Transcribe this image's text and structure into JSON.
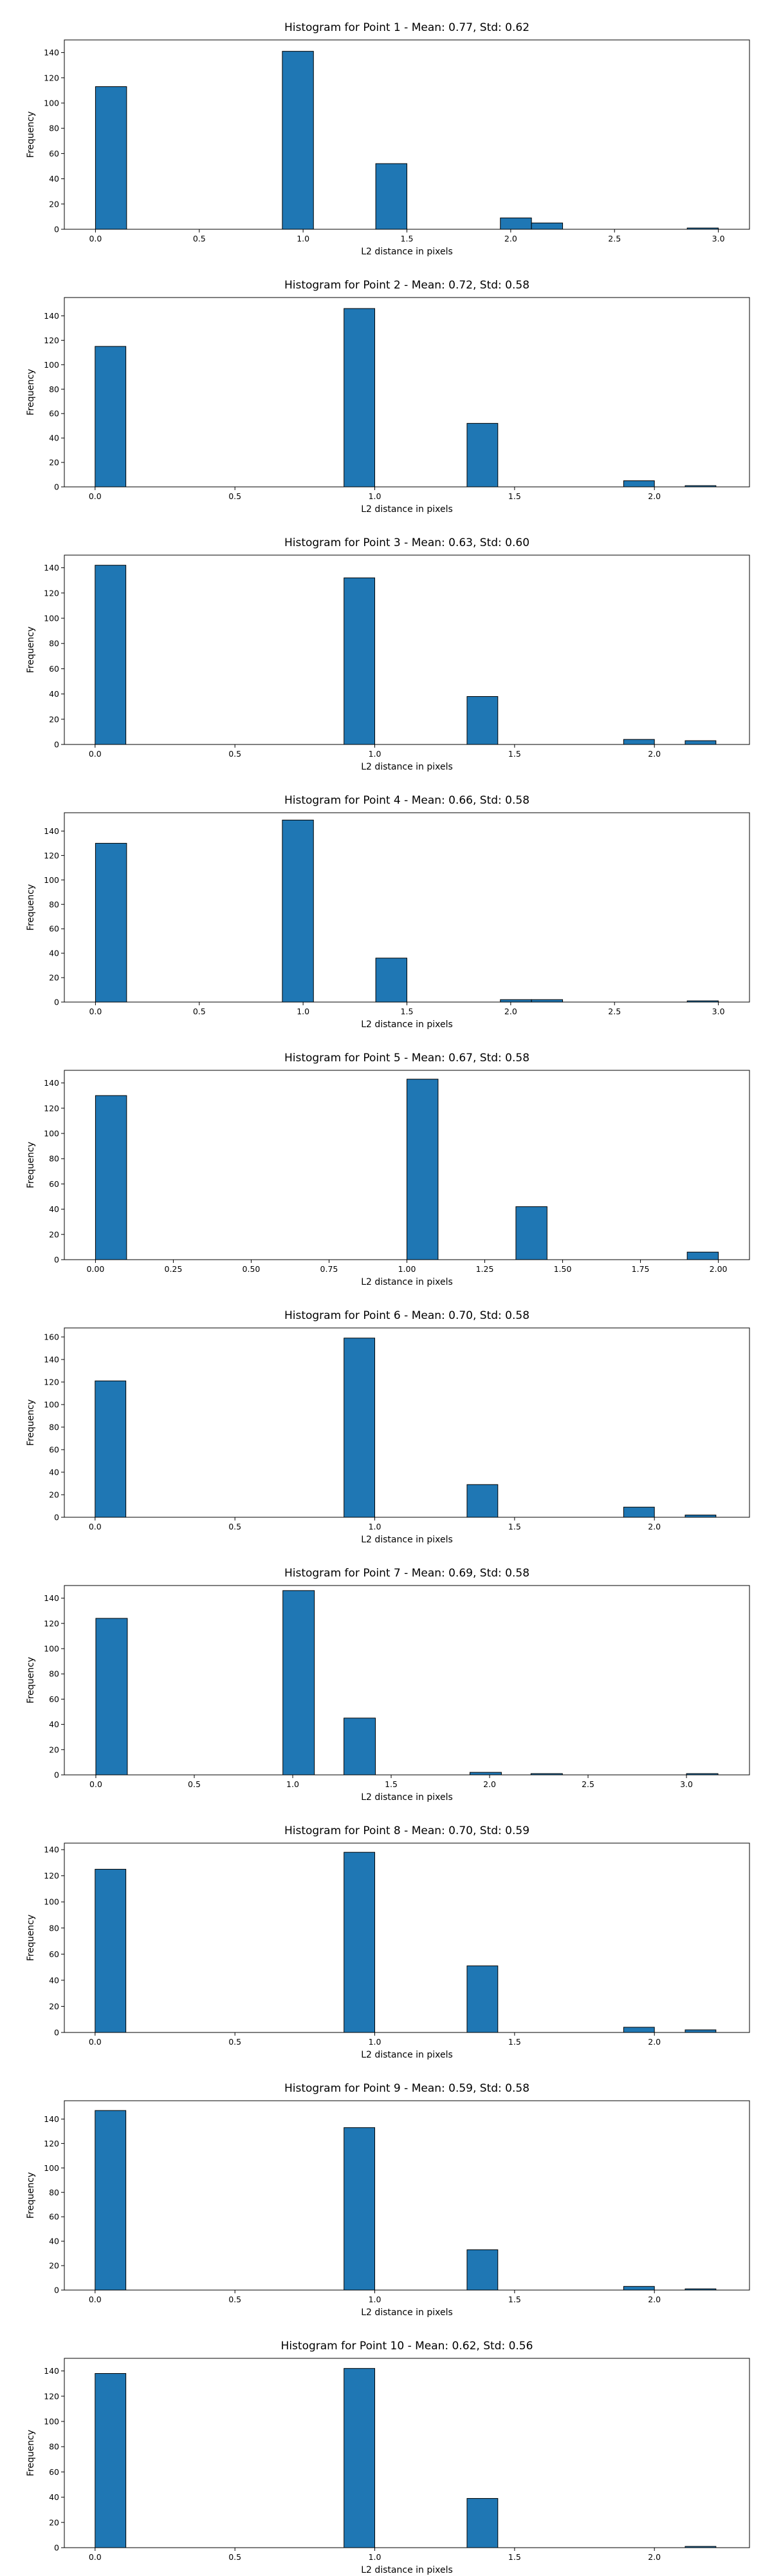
{
  "chart_data": [
    {
      "type": "bar",
      "title": "Histogram for Point 1 - Mean: 0.77, Std: 0.62",
      "xlabel": "L2 distance in pixels",
      "ylabel": "Frequency",
      "xlim": [
        -0.15,
        3.15
      ],
      "ylim": [
        0,
        150
      ],
      "xticks": [
        0.0,
        0.5,
        1.0,
        1.5,
        2.0,
        2.5,
        3.0
      ],
      "xtick_labels": [
        "0.0",
        "0.5",
        "1.0",
        "1.5",
        "2.0",
        "2.5",
        "3.0"
      ],
      "yticks": [
        0,
        20,
        40,
        60,
        80,
        100,
        120,
        140
      ],
      "ytick_labels": [
        "0",
        "20",
        "40",
        "60",
        "80",
        "100",
        "120",
        "140"
      ],
      "bins": [
        {
          "x0": 0.0,
          "x1": 0.15,
          "count": 113
        },
        {
          "x0": 0.9,
          "x1": 1.05,
          "count": 141
        },
        {
          "x0": 1.35,
          "x1": 1.5,
          "count": 52
        },
        {
          "x0": 1.95,
          "x1": 2.1,
          "count": 9
        },
        {
          "x0": 2.1,
          "x1": 2.25,
          "count": 5
        },
        {
          "x0": 2.85,
          "x1": 3.0,
          "count": 1
        }
      ]
    },
    {
      "type": "bar",
      "title": "Histogram for Point 2 - Mean: 0.72, Std: 0.58",
      "xlabel": "L2 distance in pixels",
      "ylabel": "Frequency",
      "xlim": [
        -0.11,
        2.34
      ],
      "ylim": [
        0,
        155
      ],
      "xticks": [
        0.0,
        0.5,
        1.0,
        1.5,
        2.0
      ],
      "xtick_labels": [
        "0.0",
        "0.5",
        "1.0",
        "1.5",
        "2.0"
      ],
      "yticks": [
        0,
        20,
        40,
        60,
        80,
        100,
        120,
        140
      ],
      "ytick_labels": [
        "0",
        "20",
        "40",
        "60",
        "80",
        "100",
        "120",
        "140"
      ],
      "bins": [
        {
          "x0": 0.0,
          "x1": 0.11,
          "count": 115
        },
        {
          "x0": 0.89,
          "x1": 1.0,
          "count": 146
        },
        {
          "x0": 1.33,
          "x1": 1.44,
          "count": 52
        },
        {
          "x0": 1.89,
          "x1": 2.0,
          "count": 5
        },
        {
          "x0": 2.11,
          "x1": 2.22,
          "count": 1
        }
      ]
    },
    {
      "type": "bar",
      "title": "Histogram for Point 3 - Mean: 0.63, Std: 0.60",
      "xlabel": "L2 distance in pixels",
      "ylabel": "Frequency",
      "xlim": [
        -0.11,
        2.34
      ],
      "ylim": [
        0,
        150
      ],
      "xticks": [
        0.0,
        0.5,
        1.0,
        1.5,
        2.0
      ],
      "xtick_labels": [
        "0.0",
        "0.5",
        "1.0",
        "1.5",
        "2.0"
      ],
      "yticks": [
        0,
        20,
        40,
        60,
        80,
        100,
        120,
        140
      ],
      "ytick_labels": [
        "0",
        "20",
        "40",
        "60",
        "80",
        "100",
        "120",
        "140"
      ],
      "bins": [
        {
          "x0": 0.0,
          "x1": 0.11,
          "count": 142
        },
        {
          "x0": 0.89,
          "x1": 1.0,
          "count": 132
        },
        {
          "x0": 1.33,
          "x1": 1.44,
          "count": 38
        },
        {
          "x0": 1.89,
          "x1": 2.0,
          "count": 4
        },
        {
          "x0": 2.11,
          "x1": 2.22,
          "count": 3
        }
      ]
    },
    {
      "type": "bar",
      "title": "Histogram for Point 4 - Mean: 0.66, Std: 0.58",
      "xlabel": "L2 distance in pixels",
      "ylabel": "Frequency",
      "xlim": [
        -0.15,
        3.15
      ],
      "ylim": [
        0,
        155
      ],
      "xticks": [
        0.0,
        0.5,
        1.0,
        1.5,
        2.0,
        2.5,
        3.0
      ],
      "xtick_labels": [
        "0.0",
        "0.5",
        "1.0",
        "1.5",
        "2.0",
        "2.5",
        "3.0"
      ],
      "yticks": [
        0,
        20,
        40,
        60,
        80,
        100,
        120,
        140
      ],
      "ytick_labels": [
        "0",
        "20",
        "40",
        "60",
        "80",
        "100",
        "120",
        "140"
      ],
      "bins": [
        {
          "x0": 0.0,
          "x1": 0.15,
          "count": 130
        },
        {
          "x0": 0.9,
          "x1": 1.05,
          "count": 149
        },
        {
          "x0": 1.35,
          "x1": 1.5,
          "count": 36
        },
        {
          "x0": 1.95,
          "x1": 2.1,
          "count": 2
        },
        {
          "x0": 2.1,
          "x1": 2.25,
          "count": 2
        },
        {
          "x0": 2.85,
          "x1": 3.0,
          "count": 1
        }
      ]
    },
    {
      "type": "bar",
      "title": "Histogram for Point 5 - Mean: 0.67, Std: 0.58",
      "xlabel": "L2 distance in pixels",
      "ylabel": "Frequency",
      "xlim": [
        -0.1,
        2.1
      ],
      "ylim": [
        0,
        150
      ],
      "xticks": [
        0.0,
        0.25,
        0.5,
        0.75,
        1.0,
        1.25,
        1.5,
        1.75,
        2.0
      ],
      "xtick_labels": [
        "0.00",
        "0.25",
        "0.50",
        "0.75",
        "1.00",
        "1.25",
        "1.50",
        "1.75",
        "2.00"
      ],
      "yticks": [
        0,
        20,
        40,
        60,
        80,
        100,
        120,
        140
      ],
      "ytick_labels": [
        "0",
        "20",
        "40",
        "60",
        "80",
        "100",
        "120",
        "140"
      ],
      "bins": [
        {
          "x0": 0.0,
          "x1": 0.1,
          "count": 130
        },
        {
          "x0": 1.0,
          "x1": 1.1,
          "count": 143
        },
        {
          "x0": 1.35,
          "x1": 1.45,
          "count": 42
        },
        {
          "x0": 1.9,
          "x1": 2.0,
          "count": 6
        }
      ]
    },
    {
      "type": "bar",
      "title": "Histogram for Point 6 - Mean: 0.70, Std: 0.58",
      "xlabel": "L2 distance in pixels",
      "ylabel": "Frequency",
      "xlim": [
        -0.11,
        2.34
      ],
      "ylim": [
        0,
        168
      ],
      "xticks": [
        0.0,
        0.5,
        1.0,
        1.5,
        2.0
      ],
      "xtick_labels": [
        "0.0",
        "0.5",
        "1.0",
        "1.5",
        "2.0"
      ],
      "yticks": [
        0,
        20,
        40,
        60,
        80,
        100,
        120,
        140,
        160
      ],
      "ytick_labels": [
        "0",
        "20",
        "40",
        "60",
        "80",
        "100",
        "120",
        "140",
        "160"
      ],
      "bins": [
        {
          "x0": 0.0,
          "x1": 0.11,
          "count": 121
        },
        {
          "x0": 0.89,
          "x1": 1.0,
          "count": 159
        },
        {
          "x0": 1.33,
          "x1": 1.44,
          "count": 29
        },
        {
          "x0": 1.89,
          "x1": 2.0,
          "count": 9
        },
        {
          "x0": 2.11,
          "x1": 2.22,
          "count": 2
        }
      ]
    },
    {
      "type": "bar",
      "title": "Histogram for Point 7 - Mean: 0.69, Std: 0.58",
      "xlabel": "L2 distance in pixels",
      "ylabel": "Frequency",
      "xlim": [
        -0.16,
        3.32
      ],
      "ylim": [
        0,
        150
      ],
      "xticks": [
        0.0,
        0.5,
        1.0,
        1.5,
        2.0,
        2.5,
        3.0
      ],
      "xtick_labels": [
        "0.0",
        "0.5",
        "1.0",
        "1.5",
        "2.0",
        "2.5",
        "3.0"
      ],
      "yticks": [
        0,
        20,
        40,
        60,
        80,
        100,
        120,
        140
      ],
      "ytick_labels": [
        "0",
        "20",
        "40",
        "60",
        "80",
        "100",
        "120",
        "140"
      ],
      "bins": [
        {
          "x0": 0.0,
          "x1": 0.16,
          "count": 124
        },
        {
          "x0": 0.95,
          "x1": 1.11,
          "count": 146
        },
        {
          "x0": 1.26,
          "x1": 1.42,
          "count": 45
        },
        {
          "x0": 1.9,
          "x1": 2.06,
          "count": 2
        },
        {
          "x0": 2.21,
          "x1": 2.37,
          "count": 1
        },
        {
          "x0": 3.0,
          "x1": 3.16,
          "count": 1
        }
      ]
    },
    {
      "type": "bar",
      "title": "Histogram for Point 8 - Mean: 0.70, Std: 0.59",
      "xlabel": "L2 distance in pixels",
      "ylabel": "Frequency",
      "xlim": [
        -0.11,
        2.34
      ],
      "ylim": [
        0,
        145
      ],
      "xticks": [
        0.0,
        0.5,
        1.0,
        1.5,
        2.0
      ],
      "xtick_labels": [
        "0.0",
        "0.5",
        "1.0",
        "1.5",
        "2.0"
      ],
      "yticks": [
        0,
        20,
        40,
        60,
        80,
        100,
        120,
        140
      ],
      "ytick_labels": [
        "0",
        "20",
        "40",
        "60",
        "80",
        "100",
        "120",
        "140"
      ],
      "bins": [
        {
          "x0": 0.0,
          "x1": 0.11,
          "count": 125
        },
        {
          "x0": 0.89,
          "x1": 1.0,
          "count": 138
        },
        {
          "x0": 1.33,
          "x1": 1.44,
          "count": 51
        },
        {
          "x0": 1.89,
          "x1": 2.0,
          "count": 4
        },
        {
          "x0": 2.11,
          "x1": 2.22,
          "count": 2
        }
      ]
    },
    {
      "type": "bar",
      "title": "Histogram for Point 9 - Mean: 0.59, Std: 0.58",
      "xlabel": "L2 distance in pixels",
      "ylabel": "Frequency",
      "xlim": [
        -0.11,
        2.34
      ],
      "ylim": [
        0,
        155
      ],
      "xticks": [
        0.0,
        0.5,
        1.0,
        1.5,
        2.0
      ],
      "xtick_labels": [
        "0.0",
        "0.5",
        "1.0",
        "1.5",
        "2.0"
      ],
      "yticks": [
        0,
        20,
        40,
        60,
        80,
        100,
        120,
        140
      ],
      "ytick_labels": [
        "0",
        "20",
        "40",
        "60",
        "80",
        "100",
        "120",
        "140"
      ],
      "bins": [
        {
          "x0": 0.0,
          "x1": 0.11,
          "count": 147
        },
        {
          "x0": 0.89,
          "x1": 1.0,
          "count": 133
        },
        {
          "x0": 1.33,
          "x1": 1.44,
          "count": 33
        },
        {
          "x0": 1.89,
          "x1": 2.0,
          "count": 3
        },
        {
          "x0": 2.11,
          "x1": 2.22,
          "count": 1
        }
      ]
    },
    {
      "type": "bar",
      "title": "Histogram for Point 10 - Mean: 0.62, Std: 0.56",
      "xlabel": "L2 distance in pixels",
      "ylabel": "Frequency",
      "xlim": [
        -0.11,
        2.34
      ],
      "ylim": [
        0,
        150
      ],
      "xticks": [
        0.0,
        0.5,
        1.0,
        1.5,
        2.0
      ],
      "xtick_labels": [
        "0.0",
        "0.5",
        "1.0",
        "1.5",
        "2.0"
      ],
      "yticks": [
        0,
        20,
        40,
        60,
        80,
        100,
        120,
        140
      ],
      "ytick_labels": [
        "0",
        "20",
        "40",
        "60",
        "80",
        "100",
        "120",
        "140"
      ],
      "bins": [
        {
          "x0": 0.0,
          "x1": 0.11,
          "count": 138
        },
        {
          "x0": 0.89,
          "x1": 1.0,
          "count": 142
        },
        {
          "x0": 1.33,
          "x1": 1.44,
          "count": 39
        },
        {
          "x0": 2.11,
          "x1": 2.22,
          "count": 1
        }
      ]
    }
  ],
  "colors": {
    "bar_fill": "#1f77b4",
    "bar_edge": "#000000",
    "axis": "#000000",
    "background": "#ffffff"
  }
}
